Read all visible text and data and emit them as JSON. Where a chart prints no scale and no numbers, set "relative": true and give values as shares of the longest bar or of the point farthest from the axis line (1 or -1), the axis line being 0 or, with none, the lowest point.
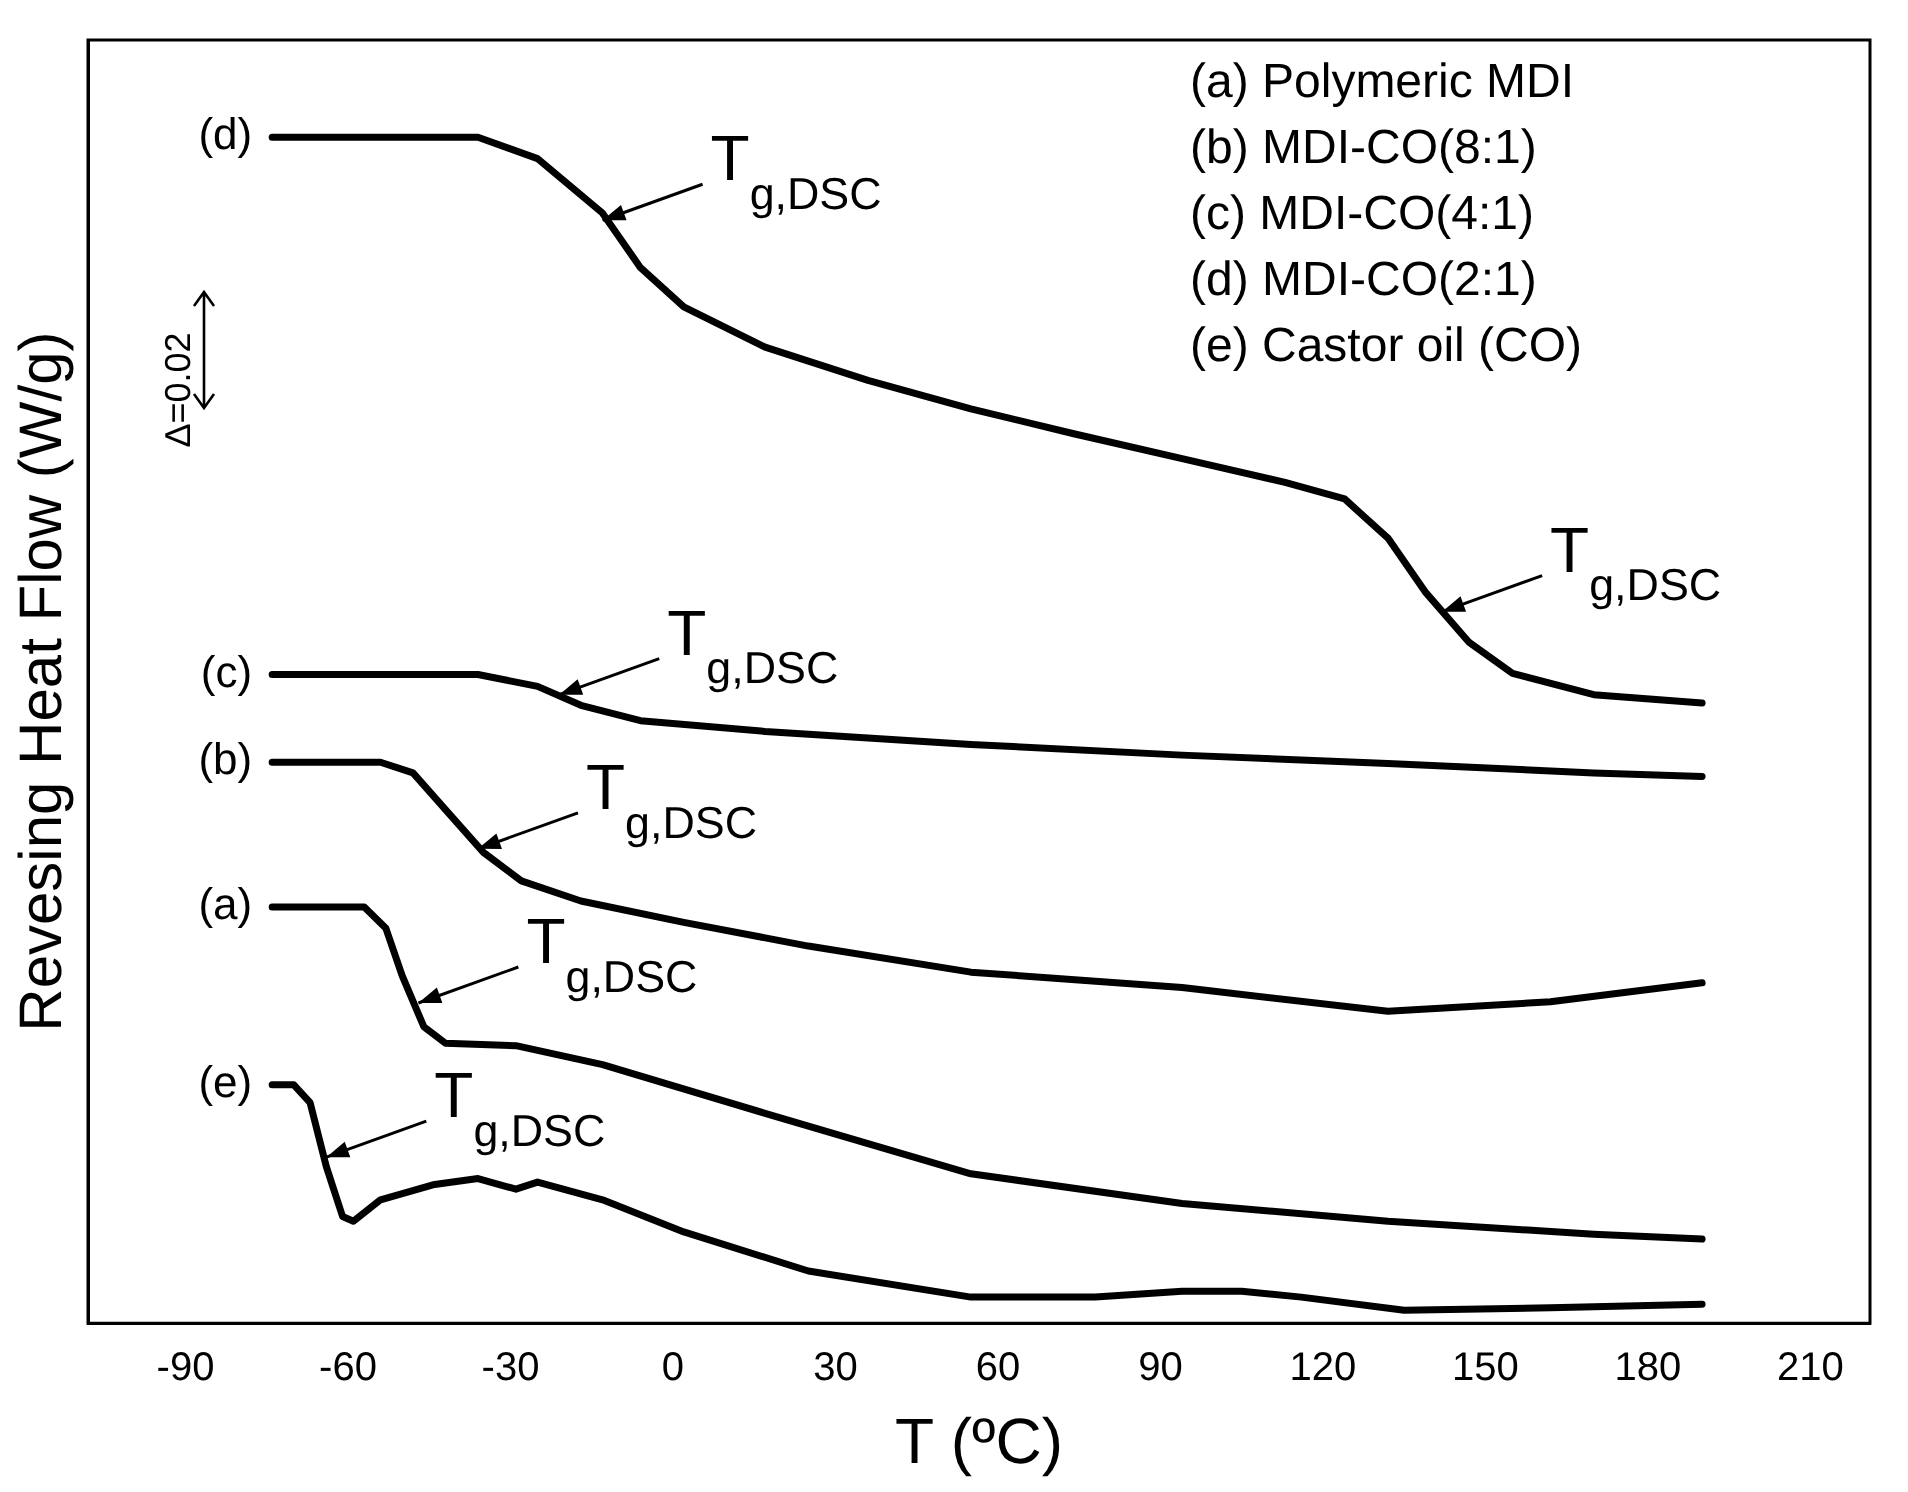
{
  "chart_data": {
    "type": "line",
    "xlabel": "T (ºC)",
    "ylabel": "Revesing Heat Flow (W/g)",
    "relative": true,
    "grid": false,
    "legend": false,
    "marker": "none",
    "line_style": "solid",
    "tick_labels": "x",
    "xlim": [
      -108,
      221
    ],
    "xticks": [
      -90,
      -60,
      -30,
      0,
      30,
      60,
      90,
      120,
      150,
      180,
      210
    ],
    "series": [
      {
        "name": "(a)",
        "color": "#000000",
        "x": [
          -74,
          -57,
          -53,
          -50,
          -46,
          -42,
          -29,
          -13,
          17,
          55,
          94,
          132,
          170,
          190
        ],
        "values": [
          0.351,
          0.351,
          0.333,
          0.293,
          0.25,
          0.236,
          0.234,
          0.218,
          0.177,
          0.126,
          0.101,
          0.086,
          0.075,
          0.071
        ]
      },
      {
        "name": "(b)",
        "color": "#000000",
        "x": [
          -74,
          -54,
          -48,
          -42,
          -35,
          -28,
          -17,
          2,
          25,
          55,
          94,
          132,
          162,
          190
        ],
        "values": [
          0.473,
          0.473,
          0.464,
          0.433,
          0.397,
          0.373,
          0.356,
          0.338,
          0.318,
          0.296,
          0.283,
          0.263,
          0.271,
          0.287
        ]
      },
      {
        "name": "(c)",
        "color": "#000000",
        "x": [
          -74,
          -36,
          -25,
          -17,
          -6,
          17,
          55,
          94,
          132,
          170,
          190
        ],
        "values": [
          0.547,
          0.547,
          0.537,
          0.521,
          0.508,
          0.499,
          0.488,
          0.479,
          0.472,
          0.464,
          0.461
        ]
      },
      {
        "name": "(d)",
        "color": "#000000",
        "x": [
          -74,
          -36,
          -25,
          -13,
          -6,
          2,
          17,
          36,
          55,
          74,
          94,
          113,
          124,
          132,
          139,
          147,
          155,
          170,
          190
        ],
        "values": [
          1.0,
          1.0,
          0.982,
          0.936,
          0.89,
          0.857,
          0.823,
          0.795,
          0.771,
          0.75,
          0.729,
          0.709,
          0.695,
          0.662,
          0.616,
          0.574,
          0.548,
          0.53,
          0.523
        ]
      },
      {
        "name": "(e)",
        "color": "#000000",
        "x": [
          -74,
          -70,
          -67,
          -64,
          -61,
          -59,
          -54,
          -44,
          -36,
          -29,
          -25,
          -13,
          2,
          25,
          55,
          78,
          94,
          105,
          116,
          135,
          162,
          190
        ],
        "values": [
          0.201,
          0.201,
          0.186,
          0.132,
          0.09,
          0.086,
          0.104,
          0.117,
          0.122,
          0.113,
          0.119,
          0.104,
          0.077,
          0.044,
          0.022,
          0.022,
          0.027,
          0.027,
          0.022,
          0.011,
          0.013,
          0.016
        ]
      }
    ],
    "annotations": [
      "(a) Polymeric MDI",
      "(b) MDI-CO(8:1)",
      "(c) MDI-CO(4:1)",
      "(d) MDI-CO(2:1)",
      "(e) Castor oil (CO)",
      "Δ=0.02",
      {
        "text": "T$_{g,DSC}$",
        "x": -13,
        "y": 0.93
      },
      {
        "text": "T$_{g,DSC}$",
        "x": 142,
        "y": 0.6
      },
      {
        "text": "T$_{g,DSC}$",
        "x": -21,
        "y": 0.53
      },
      {
        "text": "T$_{g,DSC}$",
        "x": -36,
        "y": 0.4
      },
      {
        "text": "T$_{g,DSC}$",
        "x": -47,
        "y": 0.27
      },
      {
        "text": "T$_{g,DSC}$",
        "x": -64,
        "y": 0.14
      }
    ]
  }
}
